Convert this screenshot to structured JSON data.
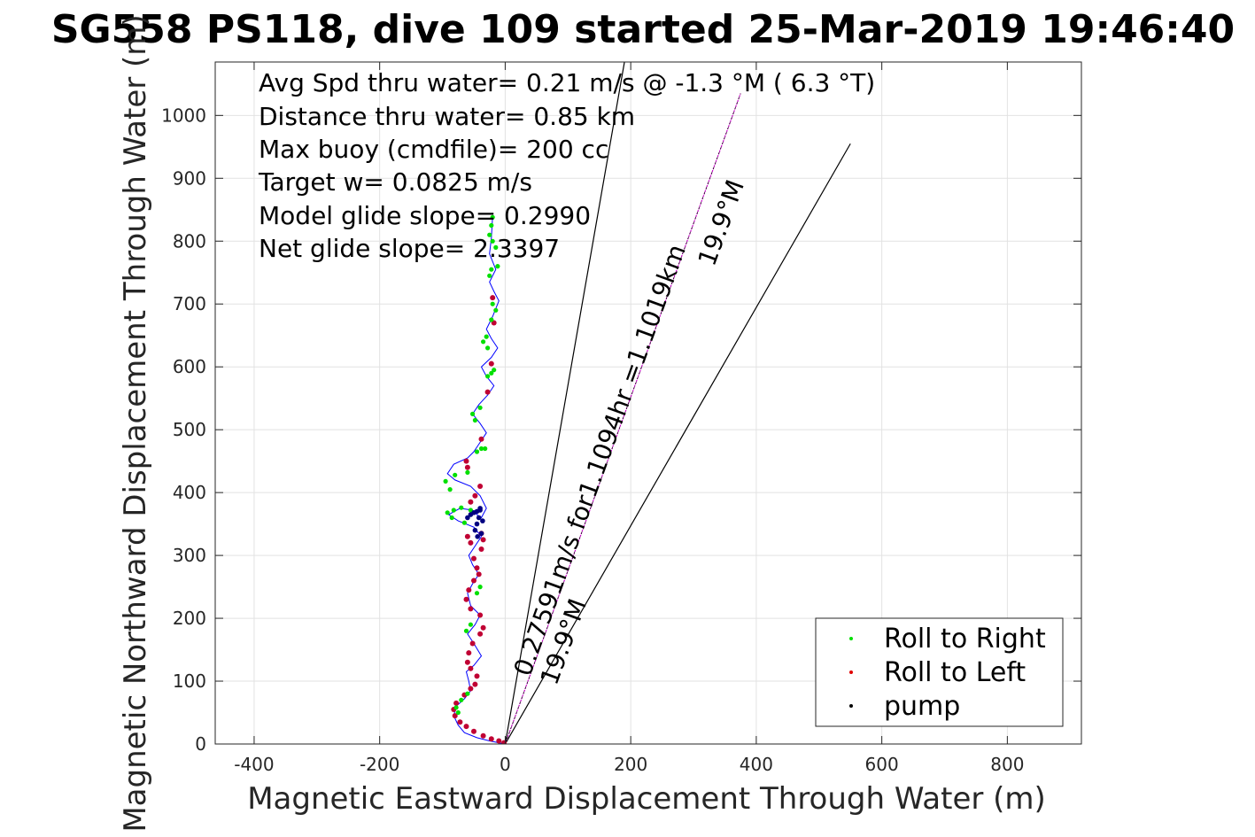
{
  "colors": {
    "roll_right": "#00e000",
    "roll_left": "#c00033",
    "pump": "#000080",
    "track": "#0000ff",
    "heading_line": "#cc00cc"
  },
  "chart_data": {
    "type": "line",
    "title": "SG558 PS118, dive 109 started 25-Mar-2019 19:46:40",
    "xlabel": "Magnetic Eastward Displacement Through Water (m)",
    "ylabel": "Magnetic Northward Displacement Through Water (m)",
    "xlim": [
      -462,
      918
    ],
    "ylim": [
      0,
      1085
    ],
    "xticks": [
      -400,
      -200,
      0,
      200,
      400,
      600,
      800
    ],
    "yticks": [
      0,
      100,
      200,
      300,
      400,
      500,
      600,
      700,
      800,
      900,
      1000
    ],
    "grid": true,
    "annotations": [
      "Avg Spd thru water=  0.21 m/s @  -1.3 °M (  6.3 °T)",
      "Distance thru water=  0.85 km",
      "Max buoy (cmdfile)= 200 cc",
      "Target w= 0.0825 m/s",
      "Model glide slope= 0.2990",
      "Net glide slope= 2.3397"
    ],
    "line_labels": {
      "velocity": "0.27591m/s for1.1094hr =1.1019km",
      "heading_main": "19.9°M",
      "heading_lower": "19.9°M"
    },
    "legend": {
      "position": "bottom-right",
      "entries": [
        {
          "label": "Roll to Right",
          "color": "#00e000"
        },
        {
          "label": "Roll to Left",
          "color": "#e00000"
        },
        {
          "label": "pump",
          "color": "#000000"
        }
      ]
    },
    "reference_lines": [
      {
        "name": "heading",
        "x": [
          0,
          375
        ],
        "y": [
          0,
          1035
        ]
      },
      {
        "name": "left-bound",
        "x": [
          0,
          190
        ],
        "y": [
          0,
          1085
        ]
      },
      {
        "name": "right-bound",
        "x": [
          0,
          550
        ],
        "y": [
          0,
          955
        ]
      }
    ],
    "track": {
      "x": [
        0,
        -10,
        -25,
        -45,
        -65,
        -75,
        -82,
        -78,
        -65,
        -55,
        -58,
        -62,
        -50,
        -38,
        -50,
        -60,
        -48,
        -40,
        -55,
        -60,
        -52,
        -42,
        -52,
        -58,
        -48,
        -38,
        -50,
        -75,
        -90,
        -72,
        -52,
        -45,
        -38,
        -30,
        -40,
        -55,
        -80,
        -92,
        -82,
        -60,
        -50,
        -40,
        -30,
        -40,
        -52,
        -42,
        -28,
        -18,
        -30,
        -38,
        -22,
        -12,
        -22,
        -30,
        -20,
        -10,
        -18,
        -25,
        -15,
        -25,
        -22,
        -20
      ],
      "y": [
        0,
        2,
        5,
        10,
        18,
        30,
        45,
        60,
        72,
        85,
        100,
        115,
        125,
        140,
        160,
        175,
        190,
        205,
        220,
        240,
        255,
        270,
        285,
        300,
        315,
        330,
        345,
        355,
        365,
        375,
        372,
        365,
        360,
        375,
        395,
        410,
        420,
        430,
        445,
        455,
        465,
        480,
        495,
        510,
        525,
        540,
        555,
        570,
        585,
        600,
        615,
        630,
        645,
        660,
        680,
        705,
        720,
        735,
        755,
        780,
        805,
        840
      ]
    },
    "roll_right": {
      "x": [
        -75,
        -78,
        -70,
        -60,
        -62,
        -55,
        -45,
        -40,
        -65,
        -85,
        -92,
        -82,
        -70,
        -55,
        -88,
        -95,
        -80,
        -60,
        -45,
        -38,
        -32,
        -48,
        -52,
        -40,
        -28,
        -22,
        -18,
        -28,
        -35,
        -30,
        -22,
        -15,
        -20,
        -25,
        -22,
        -12,
        -15,
        -20,
        -25,
        -22,
        -20
      ],
      "y": [
        50,
        58,
        70,
        80,
        180,
        190,
        240,
        250,
        352,
        360,
        368,
        372,
        376,
        372,
        405,
        418,
        428,
        432,
        465,
        470,
        470,
        515,
        525,
        535,
        585,
        590,
        595,
        630,
        640,
        648,
        675,
        690,
        700,
        745,
        755,
        760,
        790,
        800,
        810,
        825,
        838
      ]
    },
    "roll_left": {
      "x": [
        -2,
        -10,
        -22,
        -35,
        -50,
        -62,
        -72,
        -80,
        -82,
        -78,
        -65,
        -55,
        -48,
        -45,
        -55,
        -60,
        -58,
        -52,
        -40,
        -35,
        -40,
        -55,
        -62,
        -58,
        -50,
        -42,
        -45,
        -50,
        -38,
        -35,
        -38,
        -55,
        -60,
        -55,
        -48,
        -40,
        -38,
        -60,
        -62,
        -28,
        -22,
        -18,
        -20
      ],
      "y": [
        2,
        5,
        8,
        13,
        20,
        28,
        35,
        45,
        55,
        65,
        78,
        88,
        95,
        108,
        120,
        130,
        145,
        160,
        175,
        185,
        205,
        215,
        230,
        245,
        260,
        270,
        280,
        295,
        310,
        325,
        335,
        320,
        330,
        385,
        395,
        410,
        485,
        440,
        450,
        560,
        605,
        670,
        710
      ]
    },
    "pump": {
      "x": [
        -60,
        -55,
        -50,
        -45,
        -40,
        -42,
        -45,
        -48,
        -44,
        -38,
        -36,
        -40
      ],
      "y": [
        360,
        365,
        368,
        370,
        372,
        360,
        350,
        340,
        330,
        335,
        355,
        375
      ]
    }
  }
}
